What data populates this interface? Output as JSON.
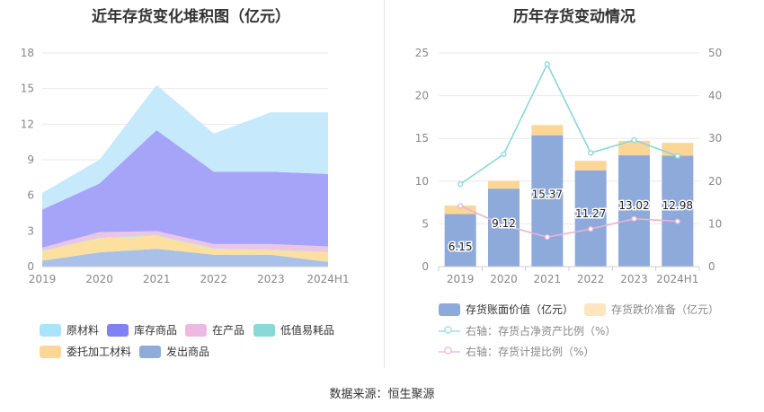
{
  "source": "数据来源：恒生聚源",
  "chart_data": [
    {
      "type": "area",
      "stacked": true,
      "title": "近年存货变化堆积图（亿元）",
      "categories": [
        "2019",
        "2020",
        "2021",
        "2022",
        "2023",
        "2024H1"
      ],
      "ylim": [
        0,
        18
      ],
      "yticks": [
        0,
        3,
        6,
        9,
        12,
        15,
        18
      ],
      "grid": true,
      "legend_position": "bottom",
      "series": [
        {
          "name": "发出商品",
          "color": "#a9c1e8",
          "values": [
            0.5,
            1.2,
            1.5,
            1.0,
            1.0,
            0.4
          ]
        },
        {
          "name": "委托加工材料",
          "color": "#fde0a0",
          "values": [
            0.8,
            1.2,
            1.1,
            0.5,
            0.4,
            0.8
          ]
        },
        {
          "name": "低值易耗品",
          "color": "#a6e3e3",
          "values": [
            0.05,
            0.05,
            0.05,
            0.05,
            0.05,
            0.05
          ]
        },
        {
          "name": "在产品",
          "color": "#ecc4e4",
          "values": [
            0.25,
            0.45,
            0.35,
            0.35,
            0.45,
            0.45
          ]
        },
        {
          "name": "库存商品",
          "color": "#a5a4f9",
          "values": [
            3.2,
            4.1,
            8.5,
            6.1,
            6.1,
            6.1
          ]
        },
        {
          "name": "原材料",
          "color": "#c6e9fb",
          "values": [
            1.4,
            2.0,
            3.8,
            3.2,
            5.0,
            5.2
          ]
        }
      ],
      "legend": [
        {
          "name": "原材料",
          "color": "#a9e4fb"
        },
        {
          "name": "库存商品",
          "color": "#8181f5"
        },
        {
          "name": "在产品",
          "color": "#ecb9e0"
        },
        {
          "name": "低值易耗品",
          "color": "#8bd8d8"
        },
        {
          "name": "委托加工材料",
          "color": "#fcd696"
        },
        {
          "name": "发出商品",
          "color": "#8fabd8"
        }
      ]
    },
    {
      "type": "bar",
      "stacked": true,
      "title": "历年存货变动情况",
      "categories": [
        "2019",
        "2020",
        "2021",
        "2022",
        "2023",
        "2024H1"
      ],
      "ylim": [
        0,
        25
      ],
      "yticks": [
        0,
        5,
        10,
        15,
        20,
        25
      ],
      "y2lim": [
        0,
        50
      ],
      "y2ticks": [
        0,
        10,
        20,
        30,
        40,
        50
      ],
      "grid": true,
      "legend_position": "bottom",
      "series": [
        {
          "name": "存货账面价值（亿元）",
          "axis": "left",
          "color": "#8eaadb",
          "values": [
            6.15,
            9.12,
            15.37,
            11.27,
            13.02,
            12.98
          ],
          "labels": [
            "6.15",
            "9.12",
            "15.37",
            "11.27",
            "13.02",
            "12.98"
          ]
        },
        {
          "name": "存货跌价准备（亿元）",
          "axis": "left",
          "color": "#fcd696",
          "values": [
            1.0,
            0.9,
            1.2,
            1.1,
            1.7,
            1.5
          ]
        },
        {
          "name": "右轴：存货占净资产比例（%）",
          "axis": "right",
          "type": "line",
          "color": "#8ad6dc",
          "values": [
            19.3,
            26.3,
            47.4,
            26.6,
            29.6,
            25.9
          ]
        },
        {
          "name": "右轴：存货计提比例（%）",
          "axis": "right",
          "type": "line",
          "color": "#e7b3d5",
          "values": [
            14.2,
            9.7,
            6.9,
            8.8,
            11.2,
            10.6
          ]
        }
      ]
    }
  ]
}
